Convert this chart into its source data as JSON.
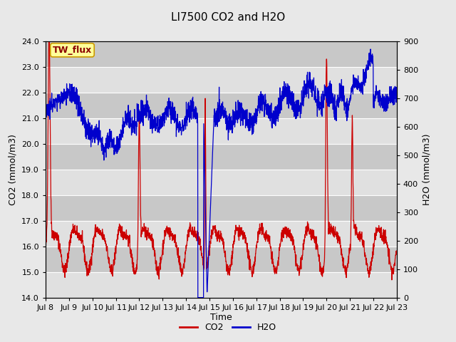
{
  "title": "LI7500 CO2 and H2O",
  "xlabel": "Time",
  "ylabel_left": "CO2 (mmol/m3)",
  "ylabel_right": "H2O (mmol/m3)",
  "co2_ylim": [
    14.0,
    24.0
  ],
  "h2o_ylim": [
    0,
    900
  ],
  "co2_yticks": [
    14.0,
    15.0,
    16.0,
    17.0,
    18.0,
    19.0,
    20.0,
    21.0,
    22.0,
    23.0,
    24.0
  ],
  "h2o_yticks": [
    0,
    100,
    200,
    300,
    400,
    500,
    600,
    700,
    800,
    900
  ],
  "xtick_labels": [
    "Jul 8",
    "Jul 9",
    "Jul 10",
    "Jul 11",
    "Jul 12",
    "Jul 13",
    "Jul 14",
    "Jul 15",
    "Jul 16",
    "Jul 17",
    "Jul 18",
    "Jul 19",
    "Jul 20",
    "Jul 21",
    "Jul 22",
    "Jul 23"
  ],
  "co2_color": "#cc0000",
  "h2o_color": "#0000cc",
  "fig_facecolor": "#e8e8e8",
  "plot_facecolor": "#d8d8d8",
  "band_light": "#e0e0e0",
  "band_dark": "#c8c8c8",
  "annotation_text": "TW_flux",
  "annotation_bg": "#ffff99",
  "annotation_border": "#cc9900",
  "title_fontsize": 11,
  "axis_label_fontsize": 9,
  "tick_fontsize": 8,
  "legend_fontsize": 9
}
